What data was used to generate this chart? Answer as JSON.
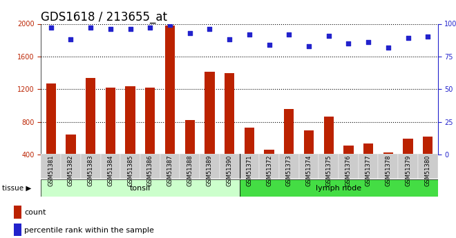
{
  "title": "GDS1618 / 213655_at",
  "categories": [
    "GSM51381",
    "GSM51382",
    "GSM51383",
    "GSM51384",
    "GSM51385",
    "GSM51386",
    "GSM51387",
    "GSM51388",
    "GSM51389",
    "GSM51390",
    "GSM51371",
    "GSM51372",
    "GSM51373",
    "GSM51374",
    "GSM51375",
    "GSM51376",
    "GSM51377",
    "GSM51378",
    "GSM51379",
    "GSM51380"
  ],
  "counts": [
    1270,
    650,
    1340,
    1220,
    1240,
    1220,
    1980,
    820,
    1410,
    1400,
    730,
    460,
    960,
    700,
    870,
    510,
    540,
    430,
    600,
    620
  ],
  "percentiles": [
    97,
    88,
    97,
    96,
    96,
    97,
    99,
    93,
    96,
    88,
    92,
    84,
    92,
    83,
    91,
    85,
    86,
    82,
    89,
    90
  ],
  "tonsil_count": 10,
  "lymph_count": 10,
  "ylim_left": [
    400,
    2000
  ],
  "ylim_right": [
    0,
    100
  ],
  "yticks_left": [
    400,
    800,
    1200,
    1600,
    2000
  ],
  "yticks_right": [
    0,
    25,
    50,
    75,
    100
  ],
  "bar_color": "#bb2200",
  "dot_color": "#2222cc",
  "tonsil_bg": "#ccffcc",
  "lymph_bg": "#44dd44",
  "xtick_bg": "#cccccc",
  "plot_bg": "#ffffff",
  "grid_color": "#000000",
  "tissue_label": "tissue",
  "tonsil_label": "tonsil",
  "lymph_label": "lymph node",
  "legend_count": "count",
  "legend_pct": "percentile rank within the sample",
  "bar_width": 0.5,
  "title_fontsize": 12,
  "tick_fontsize": 7,
  "label_fontsize": 8
}
